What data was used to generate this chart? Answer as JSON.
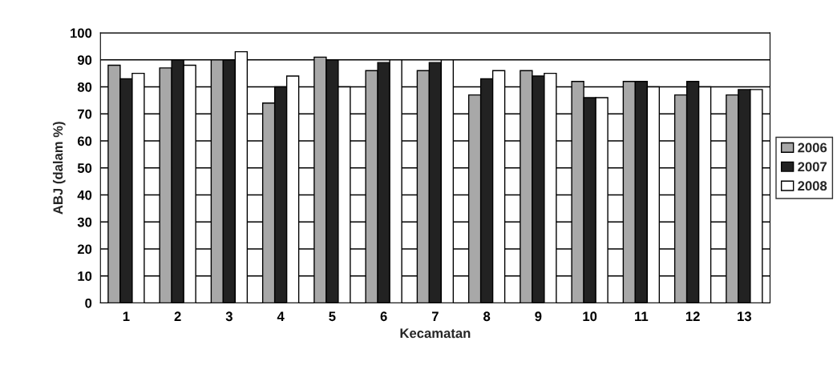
{
  "chart_data": {
    "type": "bar",
    "xlabel": "Kecamatan",
    "ylabel": "ABJ (dalam %)",
    "categories": [
      "1",
      "2",
      "3",
      "4",
      "5",
      "6",
      "7",
      "8",
      "9",
      "10",
      "11",
      "12",
      "13"
    ],
    "series": [
      {
        "name": "2006",
        "color": "#a8a8a8",
        "values": [
          88,
          87,
          90,
          74,
          91,
          86,
          86,
          77,
          86,
          82,
          82,
          77,
          77
        ]
      },
      {
        "name": "2007",
        "color": "#222222",
        "values": [
          83,
          90,
          90,
          80,
          90,
          89,
          89,
          83,
          84,
          76,
          82,
          82,
          79
        ]
      },
      {
        "name": "2008",
        "color": "#ffffff",
        "values": [
          85,
          88,
          93,
          84,
          80,
          90,
          90,
          86,
          85,
          76,
          80,
          80,
          79
        ]
      }
    ],
    "ylim": [
      0,
      100
    ],
    "yticks": [
      0,
      10,
      20,
      30,
      40,
      50,
      60,
      70,
      80,
      90,
      100
    ],
    "grid": "y",
    "legend": "right"
  }
}
